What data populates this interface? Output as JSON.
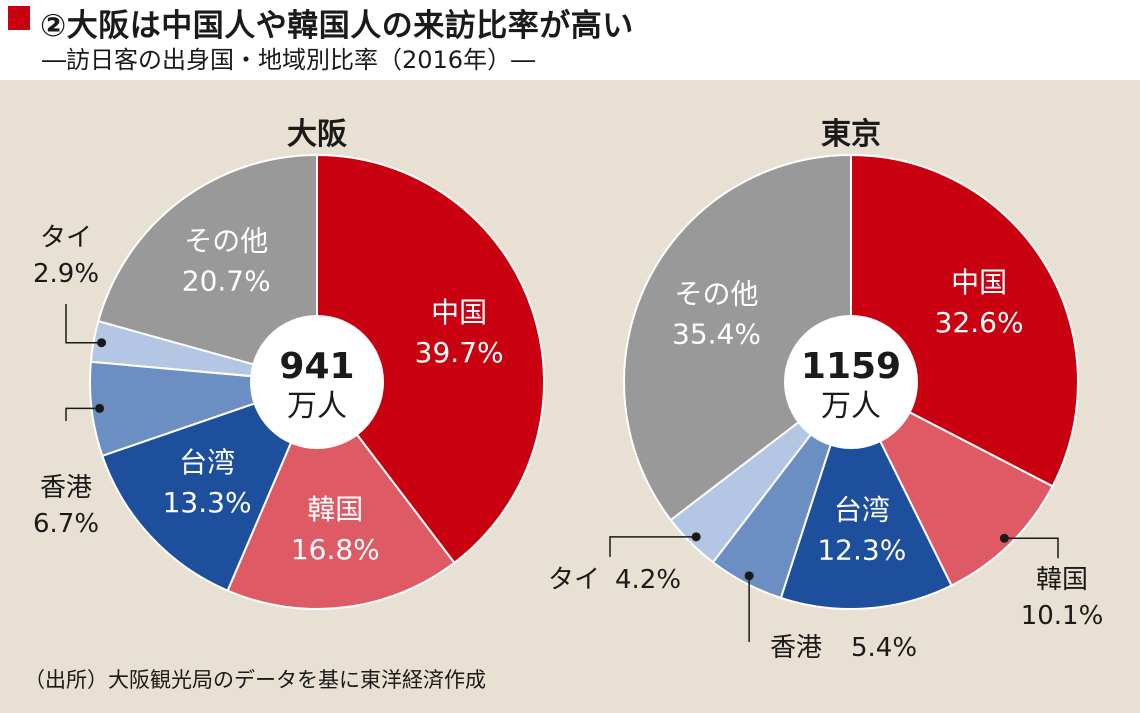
{
  "header": {
    "title": "②大阪は中国人や韓国人の来訪比率が高い",
    "subtitle": "―訪日客の出身国・地域別比率（2016年）―"
  },
  "source": "（出所）大阪観光局のデータを基に東洋経済作成",
  "colors": {
    "china": "#c8000f",
    "korea": "#de5b66",
    "taiwan": "#1d4f9c",
    "hongkong": "#6b8ec3",
    "thailand": "#b3c6e3",
    "other": "#999999",
    "panel": "#e8e1d3"
  },
  "chart_data": [
    {
      "type": "pie",
      "title": "大阪",
      "total_line1": "941",
      "total_line2": "万人",
      "slices": [
        {
          "key": "china",
          "name": "中国",
          "value": 39.7,
          "label": "39.7%"
        },
        {
          "key": "korea",
          "name": "韓国",
          "value": 16.8,
          "label": "16.8%"
        },
        {
          "key": "taiwan",
          "name": "台湾",
          "value": 13.3,
          "label": "13.3%"
        },
        {
          "key": "hongkong",
          "name": "香港",
          "value": 6.7,
          "label": "6.7%"
        },
        {
          "key": "thailand",
          "name": "タイ",
          "value": 2.9,
          "label": "2.9%"
        },
        {
          "key": "other",
          "name": "その他",
          "value": 20.7,
          "label": "20.7%"
        }
      ]
    },
    {
      "type": "pie",
      "title": "東京",
      "total_line1": "1159",
      "total_line2": "万人",
      "slices": [
        {
          "key": "china",
          "name": "中国",
          "value": 32.6,
          "label": "32.6%"
        },
        {
          "key": "korea",
          "name": "韓国",
          "value": 10.1,
          "label": "10.1%"
        },
        {
          "key": "taiwan",
          "name": "台湾",
          "value": 12.3,
          "label": "12.3%"
        },
        {
          "key": "hongkong",
          "name": "香港",
          "value": 5.4,
          "label": "5.4%"
        },
        {
          "key": "thailand",
          "name": "タイ",
          "value": 4.2,
          "label": "4.2%"
        },
        {
          "key": "other",
          "name": "その他",
          "value": 35.4,
          "label": "35.4%"
        }
      ]
    }
  ]
}
